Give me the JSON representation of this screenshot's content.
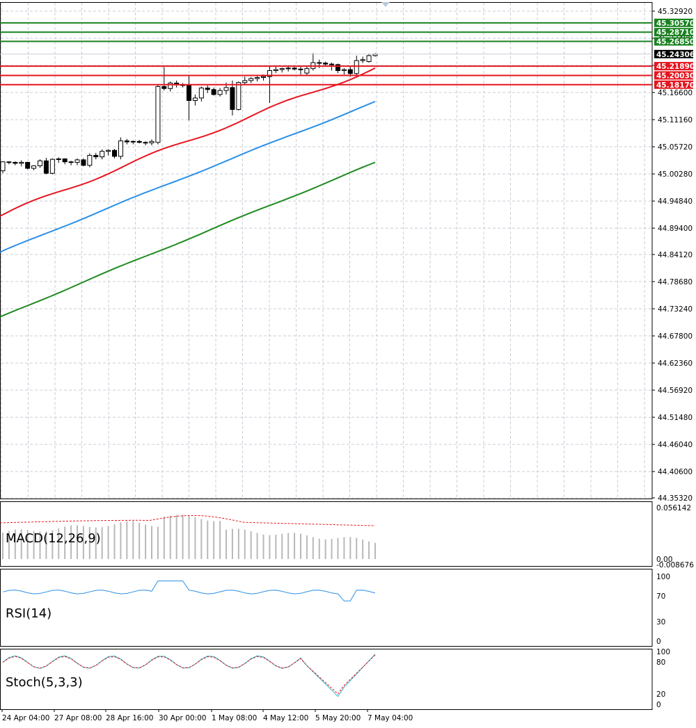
{
  "chart_data": [
    {
      "type": "candlestick",
      "title": "",
      "price_axis_ticks": [
        "45.32920",
        "45.27480",
        "45.22040",
        "45.16600",
        "45.11160",
        "45.05720",
        "45.00280",
        "44.94840",
        "44.89400",
        "44.84120",
        "44.78680",
        "44.73240",
        "44.67800",
        "44.62360",
        "44.56920",
        "44.51480",
        "44.46040",
        "44.40600",
        "44.35320"
      ],
      "ylim": [
        44.3532,
        45.3292
      ],
      "current_price": "45.24306",
      "resistance_levels": [
        "45.30570",
        "45.28710",
        "45.26850"
      ],
      "support_levels": [
        "45.21890",
        "45.20030",
        "45.18170"
      ],
      "time_labels": [
        "24 Apr 04:00",
        "27 Apr 08:00",
        "28 Apr 16:00",
        "30 Apr 00:00",
        "1 May 08:00",
        "4 May 12:00",
        "5 May 20:00",
        "7 May 04:00"
      ],
      "candles": [
        [
          45.009,
          45.028,
          45.004,
          45.027
        ],
        [
          45.027,
          45.028,
          45.022,
          45.026
        ],
        [
          45.026,
          45.028,
          45.02,
          45.024
        ],
        [
          45.024,
          45.03,
          45.018,
          45.026
        ],
        [
          45.026,
          45.027,
          45.012,
          45.014
        ],
        [
          45.014,
          45.02,
          45.01,
          45.019
        ],
        [
          45.019,
          45.032,
          45.015,
          45.029
        ],
        [
          45.029,
          45.035,
          45.002,
          45.004
        ],
        [
          45.004,
          45.034,
          45.002,
          45.032
        ],
        [
          45.032,
          45.036,
          45.025,
          45.033
        ],
        [
          45.033,
          45.034,
          45.022,
          45.027
        ],
        [
          45.027,
          45.029,
          45.02,
          45.026
        ],
        [
          45.026,
          45.034,
          45.02,
          45.031
        ],
        [
          45.031,
          45.034,
          45.018,
          45.02
        ],
        [
          45.02,
          45.044,
          45.016,
          45.04
        ],
        [
          45.04,
          45.045,
          45.032,
          45.037
        ],
        [
          45.037,
          45.052,
          45.032,
          45.048
        ],
        [
          45.048,
          45.052,
          45.04,
          45.05
        ],
        [
          45.05,
          45.053,
          45.034,
          45.038
        ],
        [
          45.038,
          45.076,
          45.032,
          45.069
        ],
        [
          45.069,
          45.073,
          45.062,
          45.067
        ],
        [
          45.067,
          45.07,
          45.062,
          45.068
        ],
        [
          45.068,
          45.071,
          45.064,
          45.066
        ],
        [
          45.066,
          45.068,
          45.06,
          45.065
        ],
        [
          45.065,
          45.072,
          45.06,
          45.068
        ],
        [
          45.066,
          45.182,
          45.062,
          45.178
        ],
        [
          45.178,
          45.217,
          45.17,
          45.174
        ],
        [
          45.174,
          45.188,
          45.168,
          45.185
        ],
        [
          45.185,
          45.19,
          45.176,
          45.182
        ],
        [
          45.182,
          45.185,
          45.176,
          45.18
        ],
        [
          45.18,
          45.2,
          45.11,
          45.15
        ],
        [
          45.15,
          45.162,
          45.14,
          45.155
        ],
        [
          45.155,
          45.178,
          45.148,
          45.175
        ],
        [
          45.175,
          45.18,
          45.165,
          45.172
        ],
        [
          45.172,
          45.176,
          45.16,
          45.162
        ],
        [
          45.162,
          45.175,
          45.158,
          45.17
        ],
        [
          45.17,
          45.186,
          45.162,
          45.176
        ],
        [
          45.176,
          45.19,
          45.12,
          45.132
        ],
        [
          45.132,
          45.188,
          45.13,
          45.186
        ],
        [
          45.186,
          45.198,
          45.182,
          45.19
        ],
        [
          45.19,
          45.197,
          45.185,
          45.194
        ],
        [
          45.194,
          45.2,
          45.188,
          45.196
        ],
        [
          45.196,
          45.202,
          45.19,
          45.198
        ],
        [
          45.198,
          45.22,
          45.145,
          45.21
        ],
        [
          45.21,
          45.218,
          45.205,
          45.212
        ],
        [
          45.212,
          45.216,
          45.206,
          45.214
        ],
        [
          45.214,
          45.218,
          45.208,
          45.215
        ],
        [
          45.215,
          45.217,
          45.21,
          45.213
        ],
        [
          45.213,
          45.218,
          45.202,
          45.212
        ],
        [
          45.205,
          45.22,
          45.2,
          45.214
        ],
        [
          45.214,
          45.245,
          45.21,
          45.226
        ],
        [
          45.226,
          45.232,
          45.215,
          45.225
        ],
        [
          45.225,
          45.228,
          45.218,
          45.223
        ],
        [
          45.223,
          45.226,
          45.21,
          45.222
        ],
        [
          45.222,
          45.224,
          45.205,
          45.21
        ],
        [
          45.21,
          45.215,
          45.202,
          45.212
        ],
        [
          45.212,
          45.218,
          45.198,
          45.204
        ],
        [
          45.204,
          45.24,
          45.2,
          45.23
        ],
        [
          45.23,
          45.238,
          45.225,
          45.232
        ],
        [
          45.228,
          45.244,
          45.226,
          45.24
        ],
        [
          45.24,
          45.245,
          45.238,
          45.243
        ]
      ],
      "moving_averages": [
        {
          "color": "#e8141e",
          "start": 44.918,
          "end": 45.215
        },
        {
          "color": "#2a8fe6",
          "start": 44.845,
          "end": 45.147
        },
        {
          "color": "#1e8a1e",
          "start": 44.715,
          "end": 45.025
        }
      ],
      "level_colors": {
        "resistance": "#17821e",
        "support": "#e5141e",
        "price_tag": "#000000"
      }
    },
    {
      "type": "bar",
      "indicator": "MACD(12,26,9)",
      "ticks": [
        "0.056142",
        "0.00",
        "-0.008676"
      ]
    },
    {
      "type": "line",
      "indicator": "RSI(14)",
      "ticks": [
        "100",
        "70",
        "30",
        "0"
      ]
    },
    {
      "type": "line",
      "indicator": "Stoch(5,3,3)",
      "ticks": [
        "100",
        "80",
        "20",
        "0"
      ]
    }
  ]
}
